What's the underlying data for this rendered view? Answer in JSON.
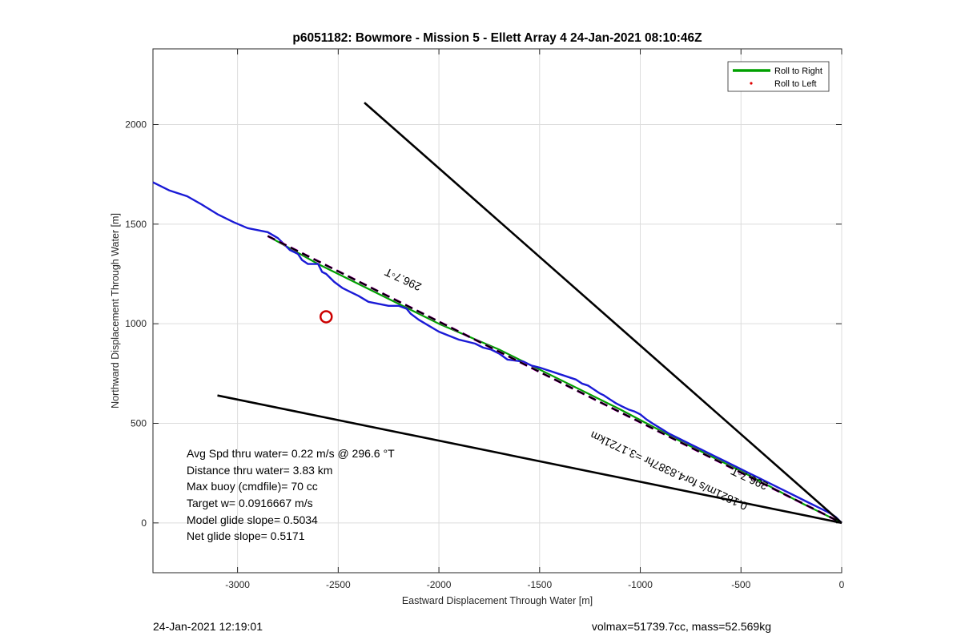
{
  "chart_data": {
    "type": "line",
    "title": "p6051182: Bowmore - Mission 5 - Ellett Array 4 24-Jan-2021 08:10:46Z",
    "xlabel": "Eastward Displacement Through Water [m]",
    "ylabel": "Northward Displacement Through Water [m]",
    "xlim": [
      -3420,
      0
    ],
    "ylim": [
      -250,
      2380
    ],
    "xticks": [
      -3000,
      -2500,
      -2000,
      -1500,
      -1000,
      -500,
      0
    ],
    "xtick_labels": [
      "-3000",
      "-2500",
      "-2000",
      "-1500",
      "-1000",
      "-500",
      "0"
    ],
    "yticks": [
      0,
      500,
      1000,
      1500,
      2000
    ],
    "ytick_labels": [
      "0",
      "500",
      "1000",
      "1500",
      "2000"
    ],
    "grid": true,
    "legend_position": "top-right",
    "legend": [
      {
        "label": "Roll to Right",
        "color": "#00a000",
        "style": "line"
      },
      {
        "label": "Roll to Left",
        "color": "#e00000",
        "style": "dot"
      }
    ],
    "series": [
      {
        "name": "Roll to Right",
        "color": "#00a000",
        "x": [
          -2850,
          -2600,
          -2300,
          -2000,
          -1700,
          -1400,
          -1100,
          -800,
          -500,
          -200,
          0
        ],
        "y": [
          1440,
          1300,
          1150,
          1000,
          870,
          720,
          570,
          410,
          260,
          100,
          0
        ]
      },
      {
        "name": "",
        "color": "#1a1ad6",
        "x": [
          -3420,
          -3400,
          -3340,
          -3250,
          -3180,
          -3100,
          -3020,
          -2950,
          -2900,
          -2850,
          -2800,
          -2770,
          -2740,
          -2700,
          -2680,
          -2650,
          -2600,
          -2580,
          -2560,
          -2520,
          -2480,
          -2440,
          -2400,
          -2350,
          -2300,
          -2250,
          -2200,
          -2160,
          -2140,
          -2100,
          -2050,
          -2000,
          -1950,
          -1900,
          -1860,
          -1820,
          -1780,
          -1740,
          -1700,
          -1660,
          -1620,
          -1580,
          -1540,
          -1500,
          -1470,
          -1440,
          -1410,
          -1380,
          -1350,
          -1320,
          -1290,
          -1260,
          -1230,
          -1200,
          -1180,
          -1150,
          -1120,
          -1090,
          -1060,
          -1030,
          -1000,
          -970,
          -940,
          -900,
          -860,
          -820,
          -780,
          -740,
          -700,
          -660,
          -620,
          -580,
          -540,
          -500,
          -460,
          -420,
          -380,
          -340,
          -300,
          -260,
          -220,
          -180,
          -140,
          -100,
          -60,
          -30,
          0
        ],
        "y": [
          1710,
          1700,
          1670,
          1640,
          1600,
          1550,
          1510,
          1480,
          1470,
          1460,
          1430,
          1400,
          1370,
          1350,
          1320,
          1300,
          1300,
          1260,
          1250,
          1210,
          1180,
          1160,
          1140,
          1110,
          1100,
          1090,
          1090,
          1075,
          1050,
          1020,
          990,
          960,
          940,
          920,
          910,
          900,
          880,
          870,
          850,
          820,
          815,
          810,
          790,
          780,
          770,
          760,
          750,
          740,
          730,
          720,
          700,
          690,
          670,
          650,
          640,
          620,
          600,
          585,
          570,
          560,
          545,
          520,
          500,
          475,
          450,
          430,
          410,
          390,
          370,
          350,
          330,
          310,
          290,
          270,
          250,
          230,
          210,
          190,
          170,
          150,
          130,
          110,
          90,
          70,
          50,
          30,
          0
        ]
      },
      {
        "name": "",
        "color": "#e000e0",
        "dash": "long",
        "x": [
          -2850,
          0
        ],
        "y": [
          1440,
          0
        ]
      },
      {
        "name": "",
        "color": "#000000",
        "dash": "long",
        "x": [
          -2850,
          0
        ],
        "y": [
          1440,
          0
        ]
      },
      {
        "name": "",
        "color": "#000000",
        "x": [
          -2370,
          0
        ],
        "y": [
          2110,
          0
        ]
      },
      {
        "name": "",
        "color": "#000000",
        "x": [
          -3100,
          0
        ],
        "y": [
          640,
          0
        ]
      }
    ],
    "markers": [
      {
        "x": -2560,
        "y": 1035,
        "shape": "circle",
        "color": "#cc0000"
      }
    ],
    "annotations": [
      {
        "text": "296.7◦T",
        "x": -2170,
        "y": 1240,
        "rotate_deg": 205
      },
      {
        "text": "296.7◦T",
        "x": -450,
        "y": 240,
        "rotate_deg": 205
      },
      {
        "text": "0.1821m/s for4.8387hr =3.1721km",
        "x": -850,
        "y": 280,
        "rotate_deg": 205
      }
    ],
    "stats": [
      "Avg Spd thru water=  0.22 m/s @ 296.6 °T",
      "Distance thru water=  3.83 km",
      "Max buoy (cmdfile)= 70 cc",
      "Target w= 0.0916667 m/s",
      "Model glide slope= 0.5034",
      "Net glide slope= 0.5171"
    ]
  },
  "footer": {
    "left": "24-Jan-2021 12:19:01",
    "right": "volmax=51739.7cc, mass=52.569kg"
  }
}
